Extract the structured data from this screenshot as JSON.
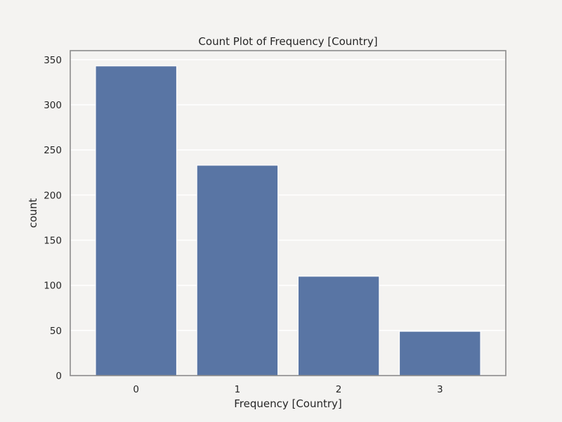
{
  "chart_data": {
    "type": "bar",
    "title": "Count Plot of Frequency [Country]",
    "xlabel": "Frequency [Country]",
    "ylabel": "count",
    "categories": [
      "0",
      "1",
      "2",
      "3"
    ],
    "values": [
      343,
      233,
      110,
      49
    ],
    "ylim": [
      0,
      360
    ],
    "yticks": [
      0,
      50,
      100,
      150,
      200,
      250,
      300,
      350
    ],
    "grid": true,
    "legend": "none",
    "colors": {
      "bar": "#5975a4",
      "background": "#f4f3f1",
      "grid": "#ffffff",
      "frame": "#8c8c8c"
    }
  }
}
